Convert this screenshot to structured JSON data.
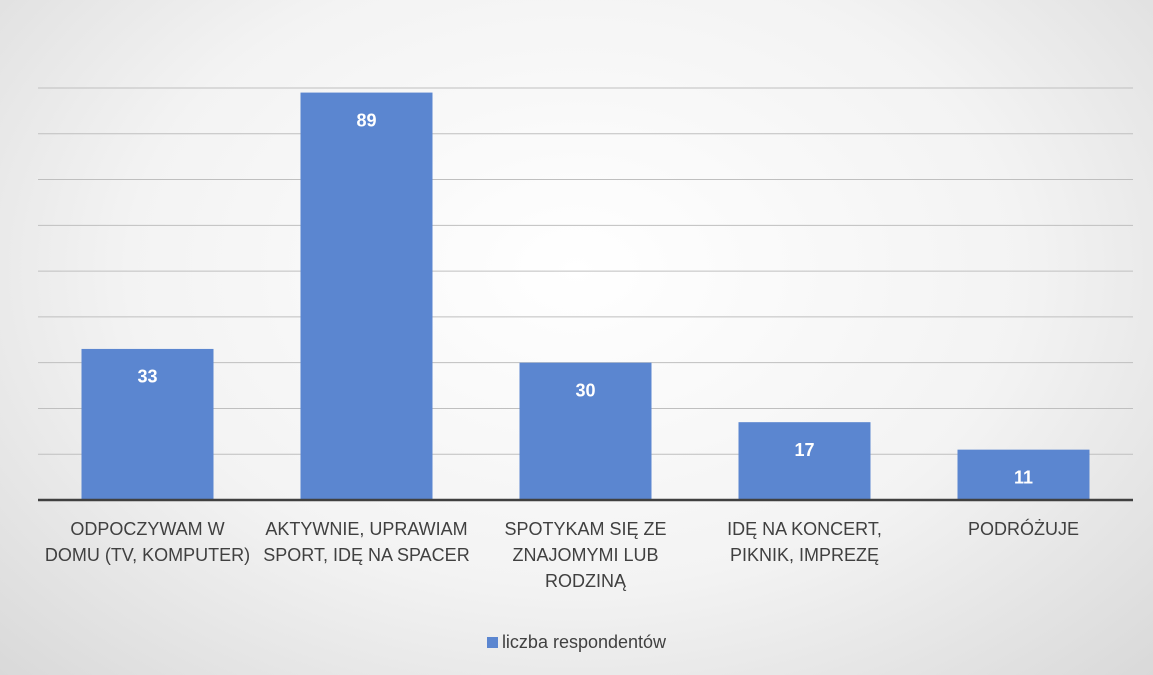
{
  "chart_data": {
    "type": "bar",
    "categories": [
      "ODPOCZYWAM W DOMU (TV, KOMPUTER)",
      "AKTYWNIE, UPRAWIAM SPORT, IDĘ NA SPACER",
      "SPOTYKAM SIĘ ZE ZNAJOMYMI LUB RODZINĄ",
      "IDĘ NA KONCERT, PIKNIK, IMPREZĘ",
      "PODRÓŻUJE"
    ],
    "series": [
      {
        "name": "liczba respondentów",
        "color": "#5b86d0",
        "values": [
          33,
          89,
          30,
          17,
          11
        ]
      }
    ],
    "ylim": [
      0,
      90
    ],
    "yticks": [
      0,
      10,
      20,
      30,
      40,
      50,
      60,
      70,
      80,
      90
    ],
    "grid": true,
    "legend": "bottom"
  }
}
